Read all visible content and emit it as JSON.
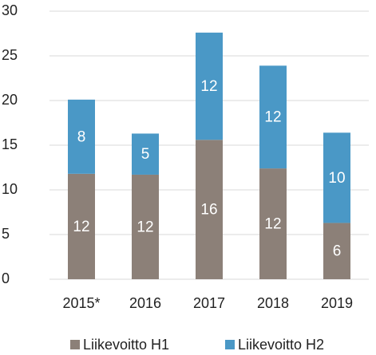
{
  "chart_data": {
    "type": "stacked_bar",
    "categories": [
      "2015*",
      "2016",
      "2017",
      "2018",
      "2019"
    ],
    "series": [
      {
        "name": "Liikevoitto H1",
        "color": "#8c8078",
        "values": [
          11.8,
          11.7,
          15.6,
          12.4,
          6.3
        ],
        "value_labels": [
          "12",
          "12",
          "16",
          "12",
          "6"
        ]
      },
      {
        "name": "Liikevoitto H2",
        "color": "#4a98c6",
        "values": [
          8.3,
          4.6,
          12.0,
          11.5,
          10.1
        ],
        "value_labels": [
          "8",
          "5",
          "12",
          "12",
          "10"
        ]
      }
    ],
    "ylim": [
      0,
      30
    ],
    "yticks": [
      0,
      5,
      10,
      15,
      20,
      25,
      30
    ],
    "grid": true,
    "legend": "bottom"
  }
}
